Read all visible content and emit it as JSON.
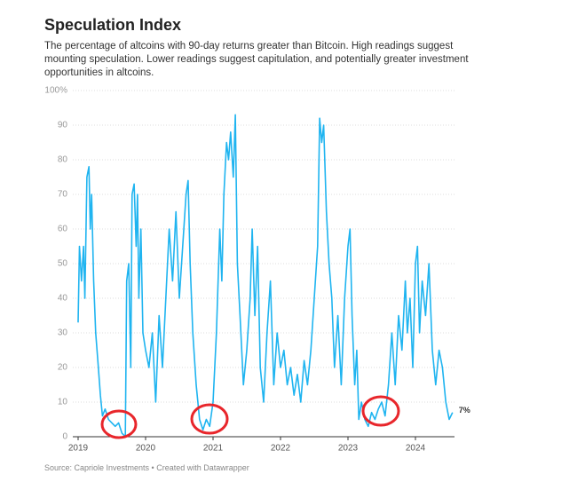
{
  "chart_data": {
    "type": "line",
    "title": "Speculation Index",
    "subtitle": "The percentage of altcoins with 90-day returns greater than Bitcoin. High readings suggest mounting speculation. Lower readings suggest capitulation, and potentially greater investment opportunities in altcoins.",
    "source": "Source: Capriole Investments • Created with Datawrapper",
    "color": "#1fb4f0",
    "x": [
      2019.0,
      2019.02,
      2019.05,
      2019.08,
      2019.1,
      2019.13,
      2019.16,
      2019.18,
      2019.2,
      2019.23,
      2019.26,
      2019.3,
      2019.33,
      2019.36,
      2019.4,
      2019.45,
      2019.5,
      2019.55,
      2019.6,
      2019.65,
      2019.7,
      2019.72,
      2019.75,
      2019.78,
      2019.8,
      2019.83,
      2019.86,
      2019.88,
      2019.9,
      2019.93,
      2019.96,
      2020.0,
      2020.05,
      2020.1,
      2020.15,
      2020.2,
      2020.25,
      2020.3,
      2020.35,
      2020.4,
      2020.45,
      2020.5,
      2020.55,
      2020.6,
      2020.63,
      2020.66,
      2020.7,
      2020.75,
      2020.8,
      2020.85,
      2020.9,
      2020.95,
      2021.0,
      2021.05,
      2021.1,
      2021.13,
      2021.16,
      2021.2,
      2021.23,
      2021.26,
      2021.3,
      2021.33,
      2021.36,
      2021.4,
      2021.45,
      2021.5,
      2021.55,
      2021.58,
      2021.62,
      2021.66,
      2021.7,
      2021.75,
      2021.8,
      2021.85,
      2021.9,
      2021.95,
      2022.0,
      2022.05,
      2022.1,
      2022.15,
      2022.2,
      2022.25,
      2022.3,
      2022.35,
      2022.4,
      2022.45,
      2022.5,
      2022.55,
      2022.58,
      2022.61,
      2022.64,
      2022.68,
      2022.72,
      2022.76,
      2022.8,
      2022.85,
      2022.9,
      2022.95,
      2023.0,
      2023.03,
      2023.06,
      2023.1,
      2023.13,
      2023.16,
      2023.2,
      2023.25,
      2023.3,
      2023.35,
      2023.4,
      2023.45,
      2023.5,
      2023.55,
      2023.6,
      2023.65,
      2023.7,
      2023.75,
      2023.8,
      2023.85,
      2023.88,
      2023.92,
      2023.96,
      2024.0,
      2024.03,
      2024.06,
      2024.1,
      2024.15,
      2024.2,
      2024.25,
      2024.3,
      2024.35,
      2024.4,
      2024.45,
      2024.5,
      2024.55
    ],
    "values": [
      33,
      55,
      45,
      55,
      40,
      75,
      78,
      60,
      70,
      45,
      30,
      20,
      12,
      6,
      8,
      5,
      4,
      3,
      4,
      1,
      0,
      45,
      50,
      20,
      70,
      73,
      55,
      70,
      40,
      60,
      30,
      25,
      20,
      30,
      10,
      35,
      20,
      40,
      60,
      45,
      65,
      40,
      55,
      70,
      74,
      50,
      30,
      15,
      5,
      2,
      5,
      3,
      10,
      30,
      60,
      45,
      70,
      85,
      80,
      88,
      75,
      93,
      50,
      35,
      15,
      25,
      40,
      60,
      35,
      55,
      20,
      10,
      30,
      45,
      15,
      30,
      20,
      25,
      15,
      20,
      12,
      18,
      10,
      22,
      15,
      25,
      40,
      55,
      92,
      85,
      90,
      65,
      50,
      40,
      20,
      35,
      15,
      40,
      55,
      60,
      35,
      15,
      25,
      5,
      10,
      5,
      3,
      7,
      5,
      8,
      10,
      6,
      15,
      30,
      15,
      35,
      25,
      45,
      30,
      40,
      20,
      50,
      55,
      30,
      45,
      35,
      50,
      25,
      15,
      25,
      20,
      10,
      5,
      7
    ],
    "xlim": [
      2019.0,
      2024.75
    ],
    "ylim": [
      0,
      100
    ],
    "xticks": [
      2019,
      2020,
      2021,
      2022,
      2023,
      2024
    ],
    "yticks": [
      0,
      10,
      20,
      30,
      40,
      50,
      60,
      70,
      80,
      90,
      {
        "value": 100,
        "label": "100%"
      }
    ],
    "grid": true,
    "annotations": [
      {
        "value": 7,
        "label": "7%"
      }
    ]
  }
}
